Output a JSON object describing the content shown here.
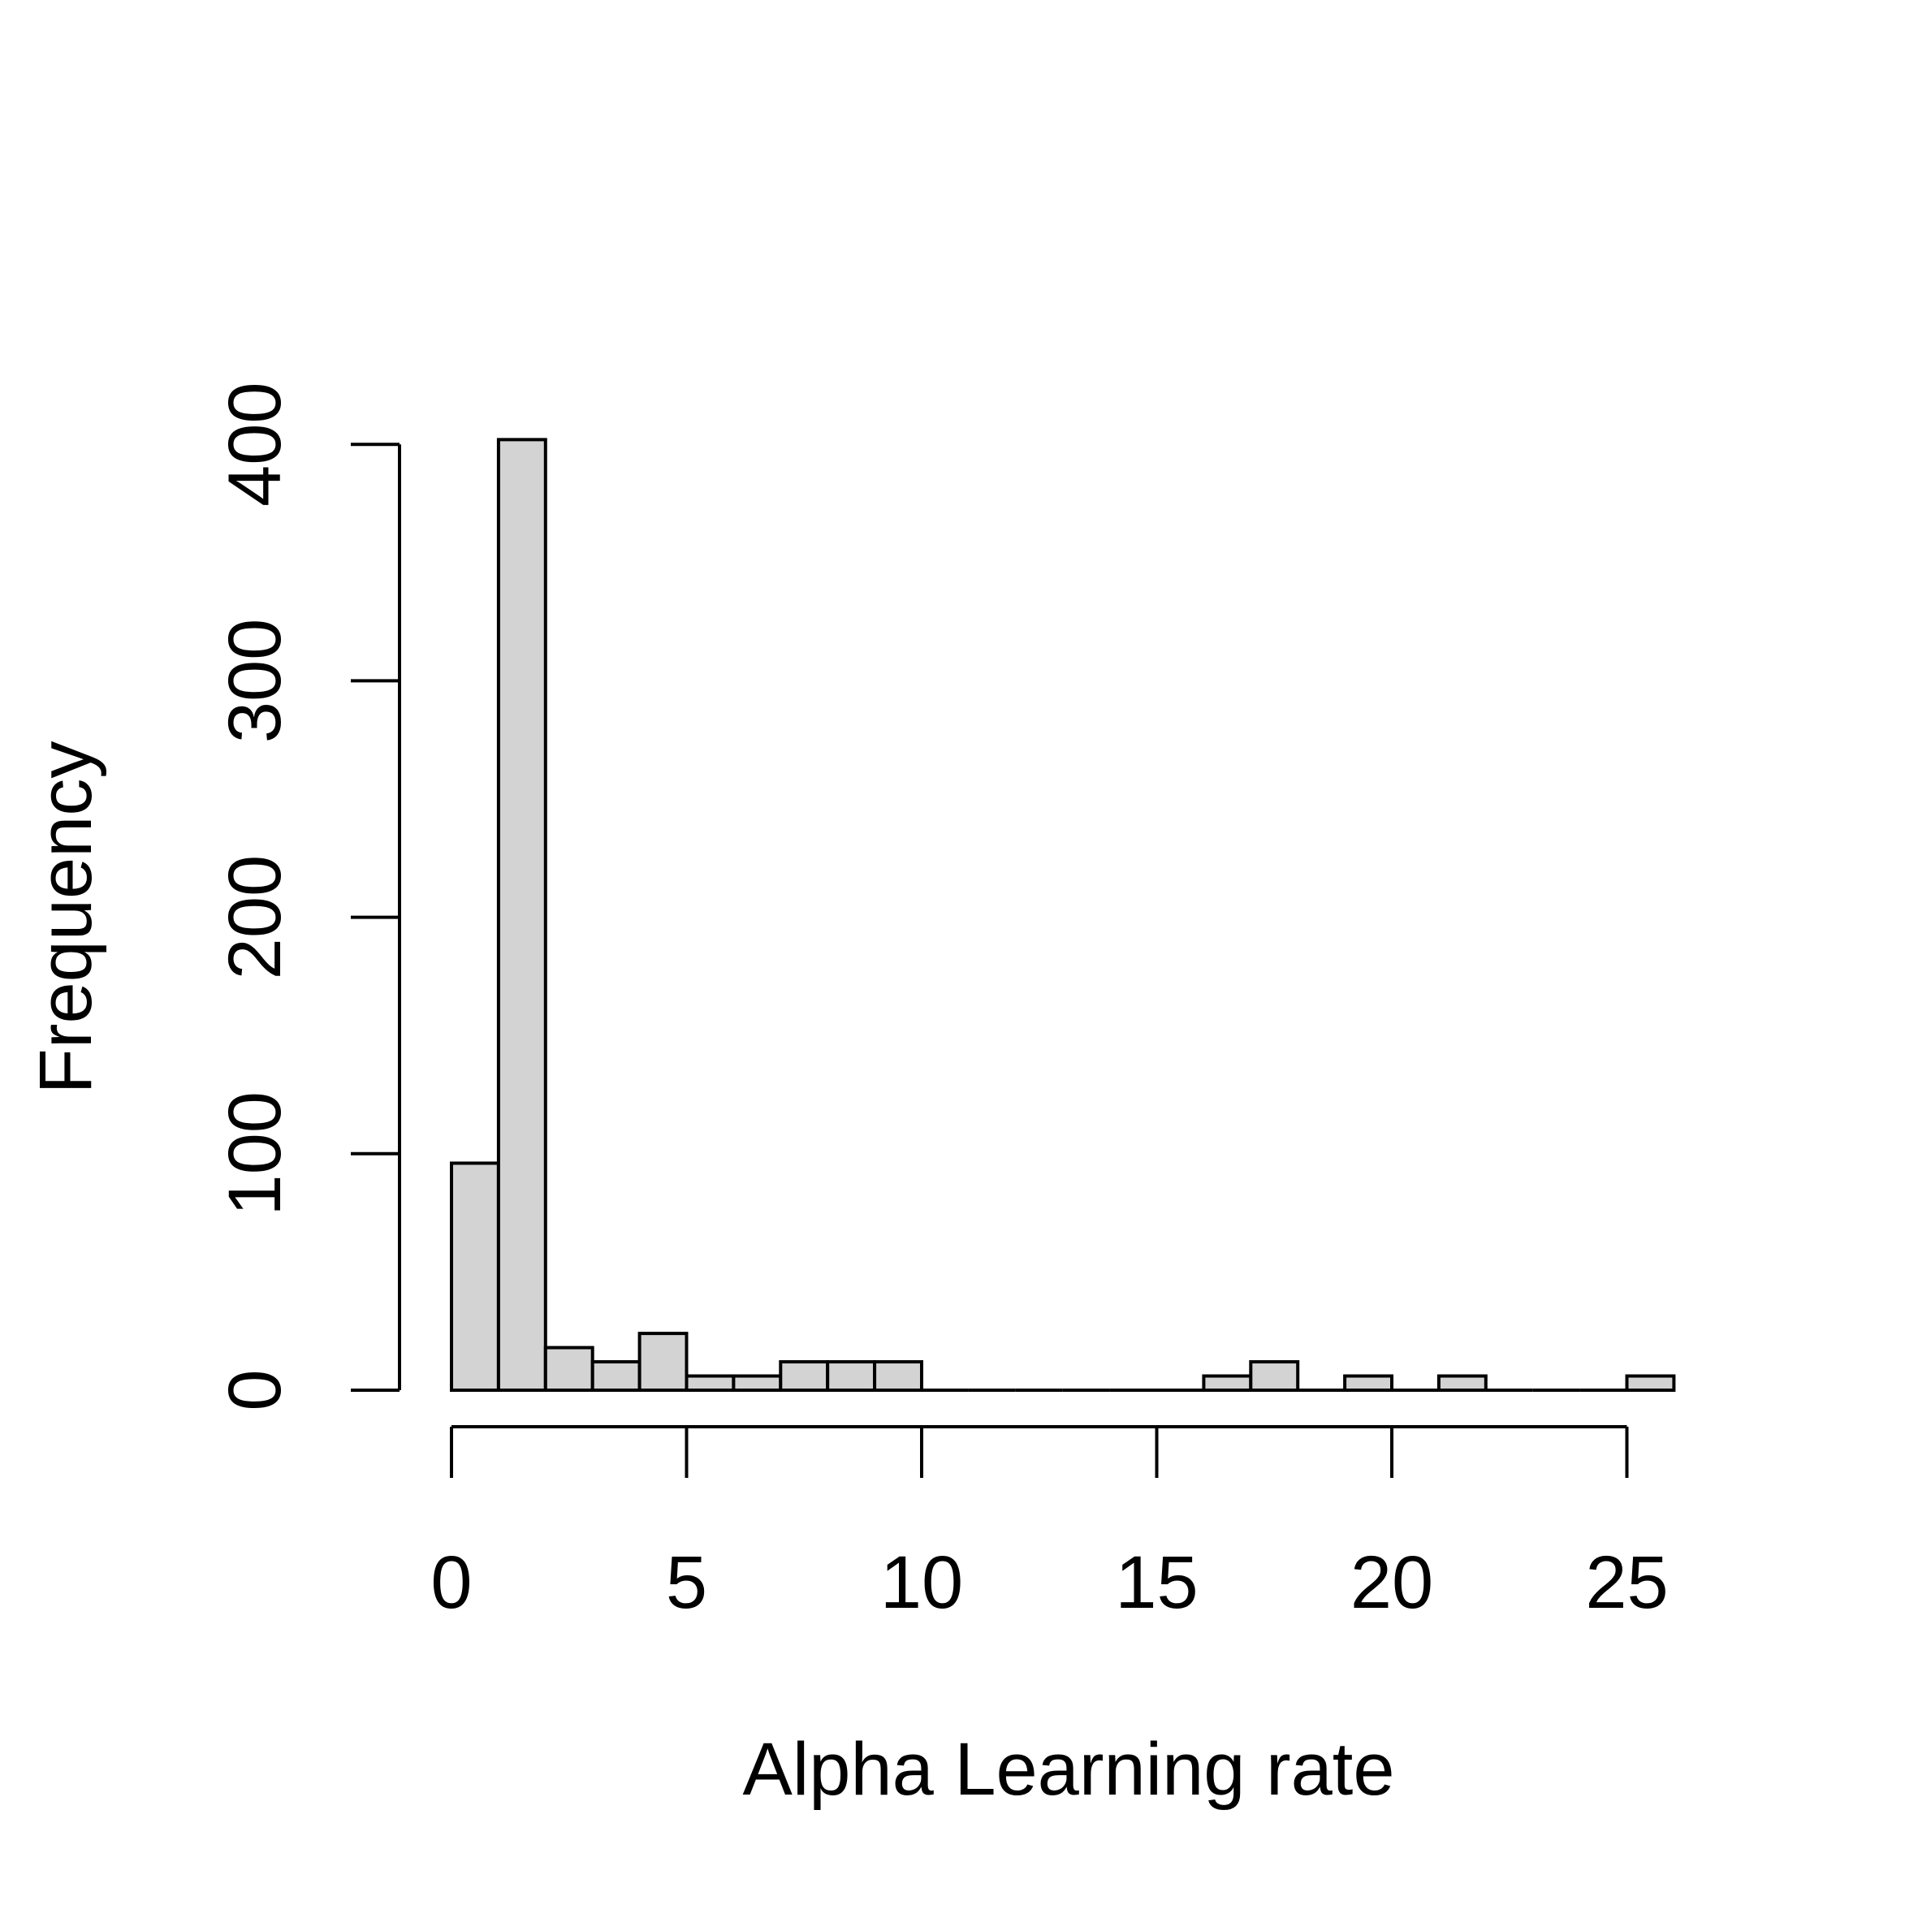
{
  "chart_data": {
    "type": "bar",
    "title": "",
    "xlabel": "Alpha Learning rate",
    "ylabel": "Frequency",
    "bin_width": 1,
    "bins": [
      {
        "start": 0,
        "end": 1,
        "count": 96
      },
      {
        "start": 1,
        "end": 2,
        "count": 402
      },
      {
        "start": 2,
        "end": 3,
        "count": 18
      },
      {
        "start": 3,
        "end": 4,
        "count": 12
      },
      {
        "start": 4,
        "end": 5,
        "count": 24
      },
      {
        "start": 5,
        "end": 6,
        "count": 6
      },
      {
        "start": 6,
        "end": 7,
        "count": 6
      },
      {
        "start": 7,
        "end": 8,
        "count": 12
      },
      {
        "start": 8,
        "end": 9,
        "count": 12
      },
      {
        "start": 9,
        "end": 10,
        "count": 12
      },
      {
        "start": 10,
        "end": 11,
        "count": 0
      },
      {
        "start": 11,
        "end": 12,
        "count": 0
      },
      {
        "start": 12,
        "end": 13,
        "count": 0
      },
      {
        "start": 13,
        "end": 14,
        "count": 0
      },
      {
        "start": 14,
        "end": 15,
        "count": 0
      },
      {
        "start": 15,
        "end": 16,
        "count": 0
      },
      {
        "start": 16,
        "end": 17,
        "count": 6
      },
      {
        "start": 17,
        "end": 18,
        "count": 12
      },
      {
        "start": 18,
        "end": 19,
        "count": 0
      },
      {
        "start": 19,
        "end": 20,
        "count": 6
      },
      {
        "start": 20,
        "end": 21,
        "count": 0
      },
      {
        "start": 21,
        "end": 22,
        "count": 6
      },
      {
        "start": 22,
        "end": 23,
        "count": 0
      },
      {
        "start": 23,
        "end": 24,
        "count": 0
      },
      {
        "start": 24,
        "end": 25,
        "count": 0
      },
      {
        "start": 25,
        "end": 26,
        "count": 6
      }
    ],
    "x_ticks": [
      0,
      5,
      10,
      15,
      20,
      25
    ],
    "y_ticks": [
      0,
      100,
      200,
      300,
      400
    ],
    "xlim": [
      0,
      25
    ],
    "ylim": [
      0,
      400
    ],
    "grid": false,
    "colors": {
      "bar_fill": "#d3d3d3",
      "bar_stroke": "#000000",
      "axis": "#000000",
      "background": "#ffffff"
    }
  }
}
